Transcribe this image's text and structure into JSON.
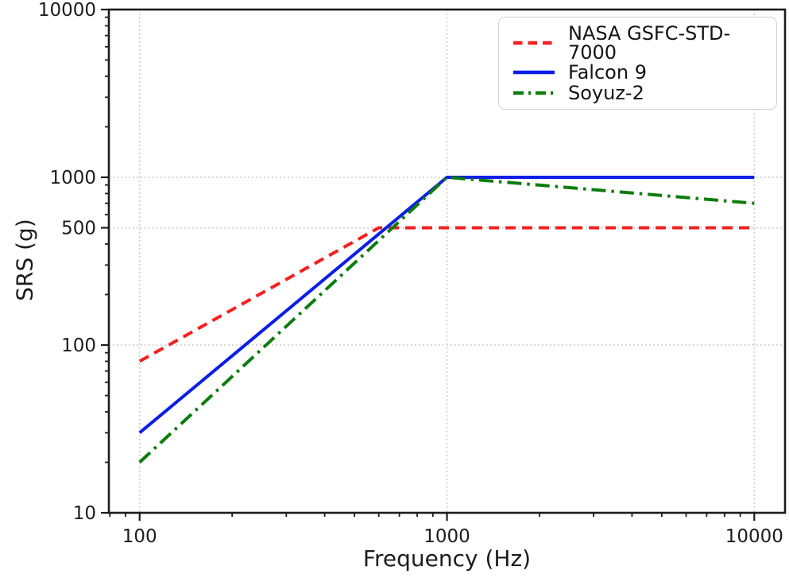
{
  "chart_data": {
    "type": "line",
    "title": "",
    "xlabel": "Frequency (Hz)",
    "ylabel": "SRS (g)",
    "x_scale": "log",
    "y_scale": "log",
    "xlim": [
      79.4,
      12590
    ],
    "ylim": [
      10,
      10000
    ],
    "grid": "dotted major gridlines on",
    "grid_color": "#c6c6c6",
    "axis_color": "#1c1c1c",
    "legend_position": "upper right",
    "x_ticks": [
      {
        "v": 100,
        "label": "100"
      },
      {
        "v": 1000,
        "label": "1000"
      },
      {
        "v": 10000,
        "label": "10000"
      }
    ],
    "y_ticks": [
      {
        "v": 10,
        "label": "10"
      },
      {
        "v": 100,
        "label": "100"
      },
      {
        "v": 500,
        "label": "500"
      },
      {
        "v": 1000,
        "label": "1000"
      },
      {
        "v": 10000,
        "label": "10000"
      }
    ],
    "series": [
      {
        "name": "NASA GSFC-STD-7000",
        "color": "#f42020",
        "style": "dashed",
        "points": [
          [
            100,
            80
          ],
          [
            600,
            500
          ],
          [
            10000,
            500
          ]
        ]
      },
      {
        "name": "Falcon 9",
        "color": "#0b1ee8",
        "style": "solid",
        "points": [
          [
            100,
            30
          ],
          [
            1000,
            1000
          ],
          [
            10000,
            1000
          ]
        ]
      },
      {
        "name": "Soyuz-2",
        "color": "#0c7d0c",
        "style": "dashdot",
        "points": [
          [
            100,
            20
          ],
          [
            1000,
            1000
          ],
          [
            10000,
            700
          ]
        ]
      }
    ]
  }
}
